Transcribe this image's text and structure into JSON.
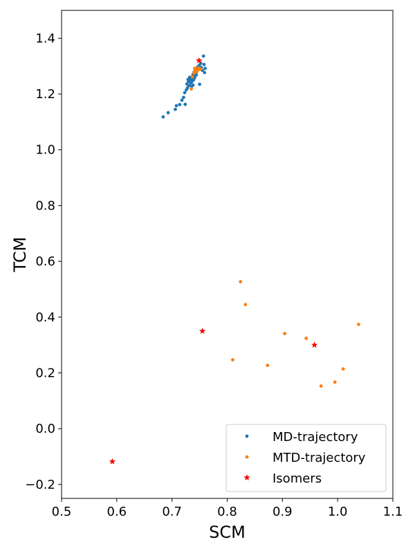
{
  "chart_data": {
    "type": "scatter",
    "title": "",
    "xlabel": "SCM",
    "ylabel": "TCM",
    "xlim": [
      0.5,
      1.1
    ],
    "ylim": [
      -0.25,
      1.5
    ],
    "xticks": [
      0.5,
      0.6,
      0.7,
      0.8,
      0.9,
      1.0,
      1.1
    ],
    "xtick_labels": [
      "0.5",
      "0.6",
      "0.7",
      "0.8",
      "0.9",
      "1.0",
      "1.1"
    ],
    "yticks": [
      -0.2,
      0.0,
      0.2,
      0.4,
      0.6,
      0.8,
      1.0,
      1.2,
      1.4
    ],
    "ytick_labels": [
      "−0.2",
      "0.0",
      "0.2",
      "0.4",
      "0.6",
      "0.8",
      "1.0",
      "1.2",
      "1.4"
    ],
    "grid": false,
    "legend_position": "bottom-right",
    "series": [
      {
        "name": "MD-trajectory",
        "color": "#1f77b4",
        "marker": "dot",
        "points": [
          [
            0.684,
            1.118
          ],
          [
            0.693,
            1.133
          ],
          [
            0.706,
            1.145
          ],
          [
            0.708,
            1.158
          ],
          [
            0.714,
            1.162
          ],
          [
            0.718,
            1.178
          ],
          [
            0.721,
            1.188
          ],
          [
            0.724,
            1.163
          ],
          [
            0.723,
            1.205
          ],
          [
            0.726,
            1.215
          ],
          [
            0.728,
            1.222
          ],
          [
            0.727,
            1.236
          ],
          [
            0.73,
            1.245
          ],
          [
            0.731,
            1.23
          ],
          [
            0.733,
            1.248
          ],
          [
            0.734,
            1.24
          ],
          [
            0.735,
            1.255
          ],
          [
            0.736,
            1.228
          ],
          [
            0.737,
            1.262
          ],
          [
            0.738,
            1.27
          ],
          [
            0.739,
            1.25
          ],
          [
            0.74,
            1.278
          ],
          [
            0.741,
            1.266
          ],
          [
            0.742,
            1.285
          ],
          [
            0.743,
            1.274
          ],
          [
            0.744,
            1.29
          ],
          [
            0.745,
            1.28
          ],
          [
            0.746,
            1.296
          ],
          [
            0.747,
            1.288
          ],
          [
            0.749,
            1.302
          ],
          [
            0.75,
            1.235
          ],
          [
            0.752,
            1.31
          ],
          [
            0.753,
            1.295
          ],
          [
            0.755,
            1.285
          ],
          [
            0.757,
            1.336
          ],
          [
            0.758,
            1.306
          ],
          [
            0.76,
            1.292
          ],
          [
            0.759,
            1.277
          ],
          [
            0.729,
            1.252
          ],
          [
            0.732,
            1.26
          ],
          [
            0.736,
            1.245
          ],
          [
            0.738,
            1.232
          ],
          [
            0.741,
            1.258
          ],
          [
            0.744,
            1.268
          ]
        ]
      },
      {
        "name": "MTD-trajectory",
        "color": "#ff7f0e",
        "marker": "dot",
        "points": [
          [
            0.735,
            1.218
          ],
          [
            0.737,
            1.262
          ],
          [
            0.74,
            1.275
          ],
          [
            0.742,
            1.283
          ],
          [
            0.744,
            1.29
          ],
          [
            0.746,
            1.286
          ],
          [
            0.748,
            1.294
          ],
          [
            0.75,
            1.288
          ],
          [
            0.745,
            1.28
          ],
          [
            0.741,
            1.292
          ],
          [
            0.752,
            1.29
          ],
          [
            0.824,
            0.527
          ],
          [
            0.833,
            0.445
          ],
          [
            0.81,
            0.247
          ],
          [
            0.873,
            0.227
          ],
          [
            0.904,
            0.341
          ],
          [
            0.943,
            0.324
          ],
          [
            0.97,
            0.153
          ],
          [
            0.995,
            0.167
          ],
          [
            1.01,
            0.214
          ],
          [
            1.038,
            0.374
          ]
        ]
      },
      {
        "name": "Isomers",
        "color": "#ff0000",
        "marker": "star",
        "points": [
          [
            0.749,
            1.32
          ],
          [
            0.755,
            0.35
          ],
          [
            0.958,
            0.3
          ],
          [
            0.592,
            -0.118
          ]
        ]
      }
    ]
  }
}
